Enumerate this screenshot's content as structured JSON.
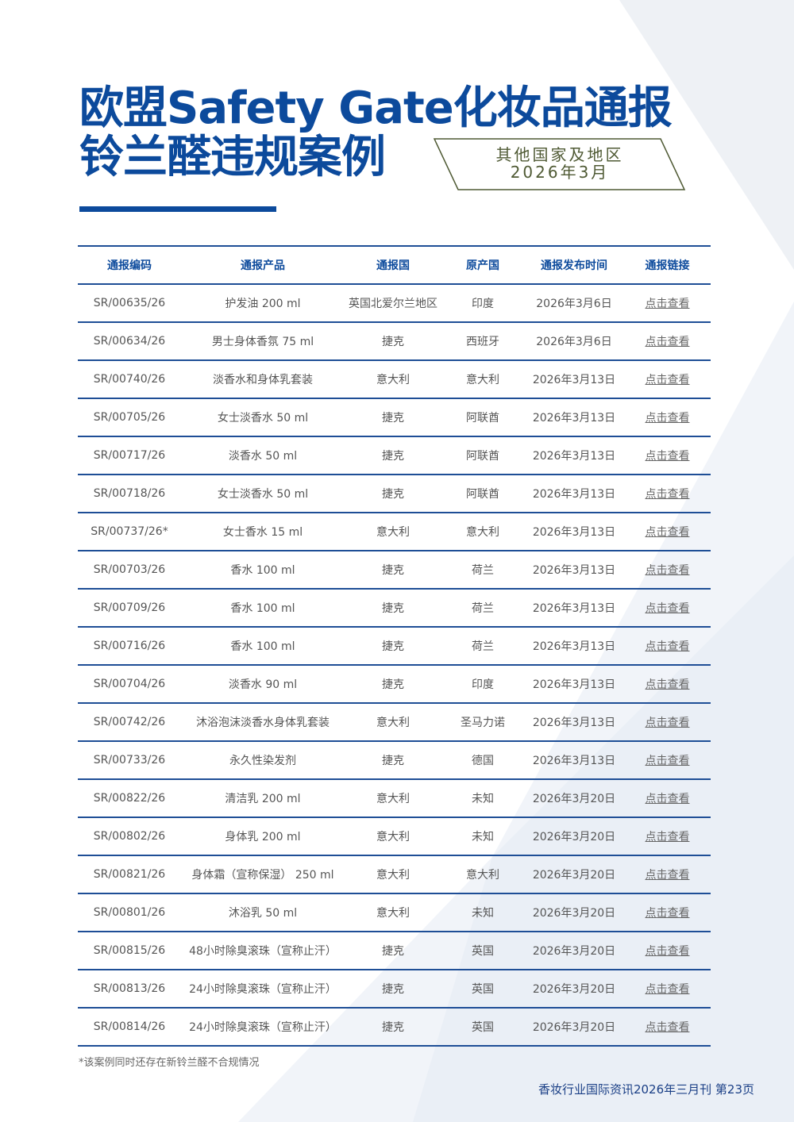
{
  "title": {
    "line1": "欧盟Safety Gate化妆品通报",
    "line2": "铃兰醛违规案例"
  },
  "badge": {
    "line1": "其他国家及地区",
    "line2": "2026年3月"
  },
  "colors": {
    "primary": "#0c4a9c",
    "badge_border": "#4f5a34",
    "row_rule": "#1e4e96"
  },
  "table": {
    "headers": [
      "通报编码",
      "通报产品",
      "通报国",
      "原产国",
      "通报发布时间",
      "通报链接"
    ],
    "rows": [
      [
        "SR/00635/26",
        "护发油 200 ml",
        "英国北爱尔兰地区",
        "印度",
        "2026年3月6日",
        "点击查看"
      ],
      [
        "SR/00634/26",
        "男士身体香氛 75 ml",
        "捷克",
        "西班牙",
        "2026年3月6日",
        "点击查看"
      ],
      [
        "SR/00740/26",
        "淡香水和身体乳套装",
        "意大利",
        "意大利",
        "2026年3月13日",
        "点击查看"
      ],
      [
        "SR/00705/26",
        "女士淡香水 50 ml",
        "捷克",
        "阿联酋",
        "2026年3月13日",
        "点击查看"
      ],
      [
        "SR/00717/26",
        "淡香水 50 ml",
        "捷克",
        "阿联酋",
        "2026年3月13日",
        "点击查看"
      ],
      [
        "SR/00718/26",
        "女士淡香水 50 ml",
        "捷克",
        "阿联酋",
        "2026年3月13日",
        "点击查看"
      ],
      [
        "SR/00737/26*",
        "女士香水 15 ml",
        "意大利",
        "意大利",
        "2026年3月13日",
        "点击查看"
      ],
      [
        "SR/00703/26",
        "香水 100 ml",
        "捷克",
        "荷兰",
        "2026年3月13日",
        "点击查看"
      ],
      [
        "SR/00709/26",
        "香水 100 ml",
        "捷克",
        "荷兰",
        "2026年3月13日",
        "点击查看"
      ],
      [
        "SR/00716/26",
        "香水 100 ml",
        "捷克",
        "荷兰",
        "2026年3月13日",
        "点击查看"
      ],
      [
        "SR/00704/26",
        "淡香水 90 ml",
        "捷克",
        "印度",
        "2026年3月13日",
        "点击查看"
      ],
      [
        "SR/00742/26",
        "沐浴泡沫淡香水身体乳套装",
        "意大利",
        "圣马力诺",
        "2026年3月13日",
        "点击查看"
      ],
      [
        "SR/00733/26",
        "永久性染发剂",
        "捷克",
        "德国",
        "2026年3月13日",
        "点击查看"
      ],
      [
        "SR/00822/26",
        "清洁乳 200 ml",
        "意大利",
        "未知",
        "2026年3月20日",
        "点击查看"
      ],
      [
        "SR/00802/26",
        "身体乳 200 ml",
        "意大利",
        "未知",
        "2026年3月20日",
        "点击查看"
      ],
      [
        "SR/00821/26",
        "身体霜（宣称保湿） 250 ml",
        "意大利",
        "意大利",
        "2026年3月20日",
        "点击查看"
      ],
      [
        "SR/00801/26",
        "沐浴乳 50 ml",
        "意大利",
        "未知",
        "2026年3月20日",
        "点击查看"
      ],
      [
        "SR/00815/26",
        "48小时除臭滚珠（宣称止汗）",
        "捷克",
        "英国",
        "2026年3月20日",
        "点击查看"
      ],
      [
        "SR/00813/26",
        "24小时除臭滚珠（宣称止汗）",
        "捷克",
        "英国",
        "2026年3月20日",
        "点击查看"
      ],
      [
        "SR/00814/26",
        "24小时除臭滚珠（宣称止汗）",
        "捷克",
        "英国",
        "2026年3月20日",
        "点击查看"
      ]
    ]
  },
  "note": "*该案例同时还存在新铃兰醛不合规情况",
  "footer": "香妆行业国际资讯2026年三月刊 第23页"
}
